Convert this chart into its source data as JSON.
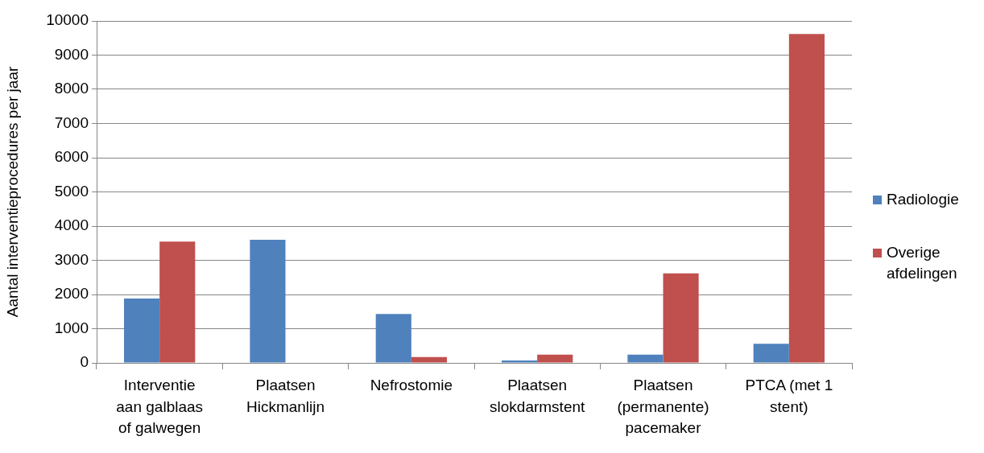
{
  "chart_data": {
    "type": "bar",
    "ylabel": "Aantal interventieprocedures per jaar",
    "categories": [
      "Interventie aan galblaas of galwegen",
      "Plaatsen Hickmanlijn",
      "Nefrostomie",
      "Plaatsen slokdarmstent",
      "Plaatsen (permanente) pacemaker",
      "PTCA (met 1 stent)"
    ],
    "series": [
      {
        "name": "Radiologie",
        "color": "#4f81bd",
        "values": [
          1880,
          3600,
          1430,
          70,
          240,
          560
        ]
      },
      {
        "name": "Overige afdelingen",
        "color": "#c0504d",
        "values": [
          3550,
          0,
          170,
          240,
          2620,
          9620
        ]
      }
    ],
    "ylim": [
      0,
      10000
    ],
    "yticks": [
      0,
      1000,
      2000,
      3000,
      4000,
      5000,
      6000,
      7000,
      8000,
      9000,
      10000
    ],
    "grid": "y",
    "legend": "right"
  }
}
